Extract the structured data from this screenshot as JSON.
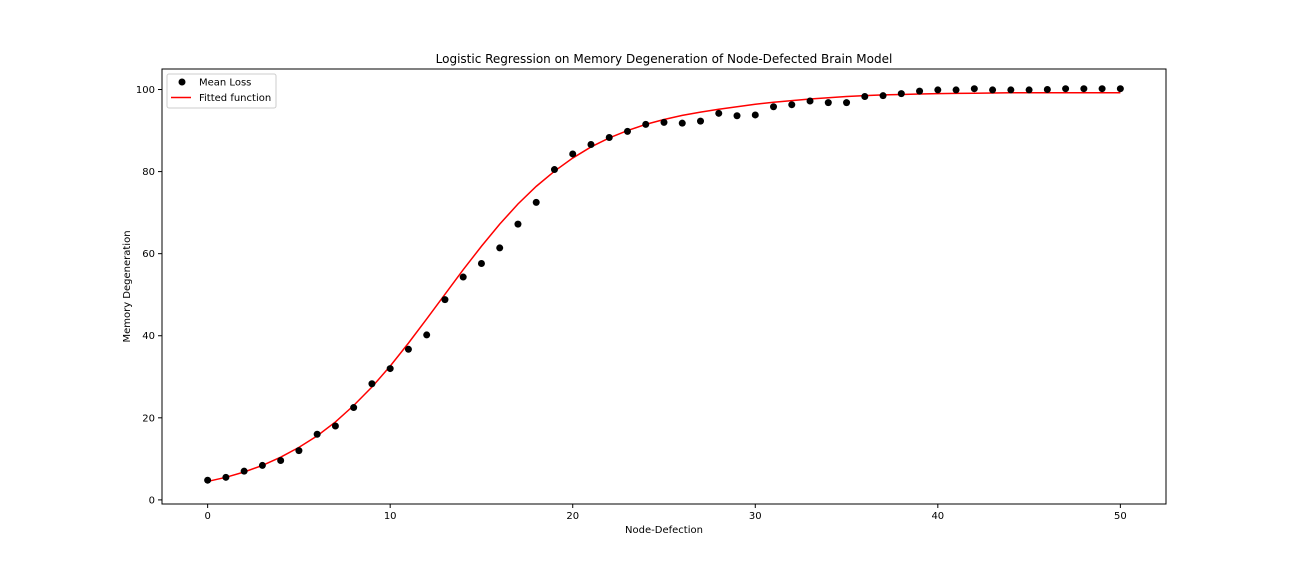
{
  "chart_data": {
    "type": "scatter",
    "title": "Logistic Regression on Memory Degeneration of Node-Defected Brain Model",
    "xlabel": "Node-Defection",
    "ylabel": "Memory Degeneration",
    "xlim": [
      -2.5,
      52.5
    ],
    "ylim": [
      -1,
      105
    ],
    "xticks": [
      0,
      10,
      20,
      30,
      40,
      50
    ],
    "yticks": [
      0,
      20,
      40,
      60,
      80,
      100
    ],
    "grid": false,
    "legend_position": "top-left",
    "series": [
      {
        "name": "Mean Loss",
        "kind": "scatter",
        "color": "#000000",
        "x": [
          0,
          1,
          2,
          3,
          4,
          5,
          6,
          7,
          8,
          9,
          10,
          11,
          12,
          13,
          14,
          15,
          16,
          17,
          18,
          19,
          20,
          21,
          22,
          23,
          24,
          25,
          26,
          27,
          28,
          29,
          30,
          31,
          32,
          33,
          34,
          35,
          36,
          37,
          38,
          39,
          40,
          41,
          42,
          43,
          44,
          45,
          46,
          47,
          48,
          49,
          50
        ],
        "y": [
          4.8,
          5.5,
          7.0,
          8.4,
          9.6,
          12.0,
          16.0,
          18.0,
          22.5,
          28.3,
          32.0,
          36.7,
          40.2,
          48.8,
          54.3,
          57.6,
          61.4,
          67.2,
          72.5,
          80.5,
          84.3,
          86.6,
          88.3,
          89.8,
          91.5,
          92.0,
          91.8,
          92.3,
          94.2,
          93.6,
          93.8,
          95.8,
          96.3,
          97.2,
          96.8,
          96.8,
          98.3,
          98.5,
          99.0,
          99.6,
          99.9,
          99.9,
          100.2,
          99.9,
          99.9,
          99.9,
          100.0,
          100.2,
          100.2,
          100.2,
          100.2
        ]
      },
      {
        "name": "Fitted function",
        "kind": "line",
        "color": "#ff0000",
        "x": [
          0,
          1,
          2,
          3,
          4,
          5,
          6,
          7,
          8,
          9,
          10,
          11,
          12,
          13,
          14,
          15,
          16,
          17,
          18,
          19,
          20,
          21,
          22,
          23,
          24,
          25,
          26,
          27,
          28,
          29,
          30,
          31,
          32,
          33,
          34,
          35,
          36,
          37,
          38,
          39,
          40,
          41,
          42,
          43,
          44,
          45,
          46,
          47,
          48,
          49,
          50
        ],
        "y": [
          4.5,
          5.5,
          6.8,
          8.4,
          10.4,
          12.8,
          15.6,
          19.0,
          23.0,
          27.5,
          32.6,
          38.2,
          44.1,
          50.1,
          56.1,
          61.8,
          67.2,
          72.1,
          76.4,
          80.1,
          83.3,
          86.0,
          88.2,
          90.0,
          91.5,
          92.7,
          93.7,
          94.5,
          95.2,
          95.8,
          96.4,
          96.9,
          97.3,
          97.7,
          98.0,
          98.3,
          98.5,
          98.7,
          98.8,
          98.9,
          99.0,
          99.05,
          99.1,
          99.15,
          99.2,
          99.2,
          99.2,
          99.2,
          99.2,
          99.2,
          99.2
        ]
      }
    ]
  }
}
